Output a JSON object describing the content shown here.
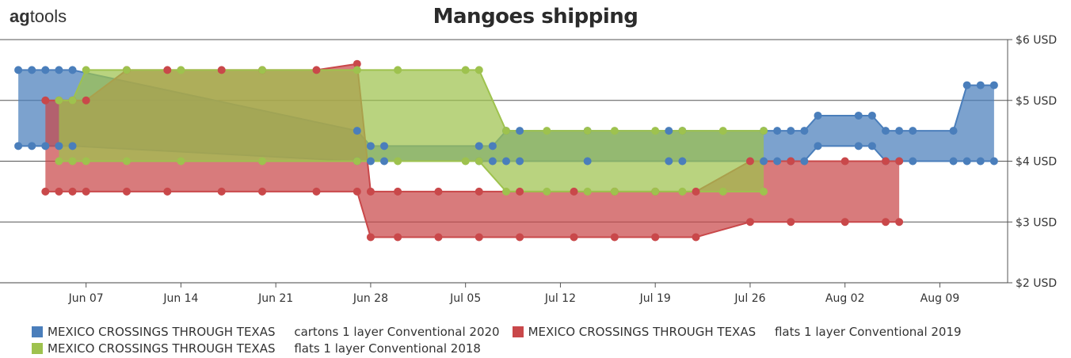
{
  "brand": {
    "logo_bold": "ag",
    "logo_rest": "tools"
  },
  "chart_data": {
    "type": "area",
    "title": "Mangoes shipping",
    "x_tick_labels": [
      "Jun 07",
      "Jun 14",
      "Jun 21",
      "Jun 28",
      "Jul 05",
      "Jul 12",
      "Jul 19",
      "Jul 26",
      "Aug 02",
      "Aug 09"
    ],
    "y_tick_labels": [
      "$2 USD",
      "$3 USD",
      "$4 USD",
      "$5 USD",
      "$6 USD"
    ],
    "ylim": [
      2,
      6
    ],
    "grid": true,
    "legend_position": "bottom",
    "series": [
      {
        "name": "MEXICO CROSSINGS THROUGH TEXAS     cartons 1 layer Conventional 2020",
        "color": "#4a7ebb",
        "x": [
          "2020-06-02",
          "2020-06-03",
          "2020-06-04",
          "2020-06-05",
          "2020-06-06",
          "2020-06-27",
          "2020-06-28",
          "2020-06-29",
          "2020-07-06",
          "2020-07-07",
          "2020-07-08",
          "2020-07-09",
          "2020-07-14",
          "2020-07-20",
          "2020-07-21",
          "2020-07-27",
          "2020-07-28",
          "2020-07-29",
          "2020-07-30",
          "2020-07-31",
          "2020-08-03",
          "2020-08-04",
          "2020-08-05",
          "2020-08-06",
          "2020-08-07",
          "2020-08-10",
          "2020-08-11",
          "2020-08-12",
          "2020-08-13"
        ],
        "high": [
          5.5,
          5.5,
          5.5,
          5.5,
          5.5,
          4.5,
          4.25,
          4.25,
          4.25,
          4.25,
          4.5,
          4.5,
          4.5,
          4.5,
          4.5,
          4.5,
          4.5,
          4.5,
          4.5,
          4.75,
          4.75,
          4.75,
          4.5,
          4.5,
          4.5,
          4.5,
          5.25,
          5.25,
          5.25
        ],
        "low": [
          4.25,
          4.25,
          4.25,
          4.25,
          4.25,
          4.0,
          4.0,
          4.0,
          4.0,
          4.0,
          4.0,
          4.0,
          4.0,
          4.0,
          4.0,
          4.0,
          4.0,
          4.0,
          4.0,
          4.25,
          4.25,
          4.25,
          4.0,
          4.0,
          4.0,
          4.0,
          4.0,
          4.0,
          4.0
        ]
      },
      {
        "name": "MEXICO CROSSINGS THROUGH TEXAS     flats 1 layer Conventional 2019",
        "color": "#c9484a",
        "x": [
          "2020-06-04",
          "2020-06-05",
          "2020-06-06",
          "2020-06-07",
          "2020-06-10",
          "2020-06-13",
          "2020-06-17",
          "2020-06-20",
          "2020-06-24",
          "2020-06-27",
          "2020-06-28",
          "2020-06-30",
          "2020-07-03",
          "2020-07-06",
          "2020-07-09",
          "2020-07-13",
          "2020-07-16",
          "2020-07-19",
          "2020-07-22",
          "2020-07-26",
          "2020-07-29",
          "2020-08-02",
          "2020-08-05",
          "2020-08-06"
        ],
        "high": [
          5.0,
          5.0,
          5.0,
          5.0,
          5.5,
          5.5,
          5.5,
          5.5,
          5.5,
          5.6,
          3.5,
          3.5,
          3.5,
          3.5,
          3.5,
          3.5,
          3.5,
          3.5,
          3.5,
          4.0,
          4.0,
          4.0,
          4.0,
          4.0
        ],
        "low": [
          3.5,
          3.5,
          3.5,
          3.5,
          3.5,
          3.5,
          3.5,
          3.5,
          3.5,
          3.5,
          2.75,
          2.75,
          2.75,
          2.75,
          2.75,
          2.75,
          2.75,
          2.75,
          2.75,
          3.0,
          3.0,
          3.0,
          3.0,
          3.0
        ]
      },
      {
        "name": "MEXICO CROSSINGS THROUGH TEXAS     flats 1 layer Conventional 2018",
        "color": "#9ec24e",
        "x": [
          "2020-06-05",
          "2020-06-06",
          "2020-06-07",
          "2020-06-10",
          "2020-06-14",
          "2020-06-20",
          "2020-06-27",
          "2020-06-30",
          "2020-07-05",
          "2020-07-06",
          "2020-07-08",
          "2020-07-11",
          "2020-07-14",
          "2020-07-16",
          "2020-07-19",
          "2020-07-21",
          "2020-07-24",
          "2020-07-27"
        ],
        "high": [
          5.0,
          5.0,
          5.5,
          5.5,
          5.5,
          5.5,
          5.5,
          5.5,
          5.5,
          5.5,
          4.5,
          4.5,
          4.5,
          4.5,
          4.5,
          4.5,
          4.5,
          4.5
        ],
        "low": [
          4.0,
          4.0,
          4.0,
          4.0,
          4.0,
          4.0,
          4.0,
          4.0,
          4.0,
          4.0,
          3.5,
          3.5,
          3.5,
          3.5,
          3.5,
          3.5,
          3.5,
          3.5
        ]
      }
    ]
  }
}
